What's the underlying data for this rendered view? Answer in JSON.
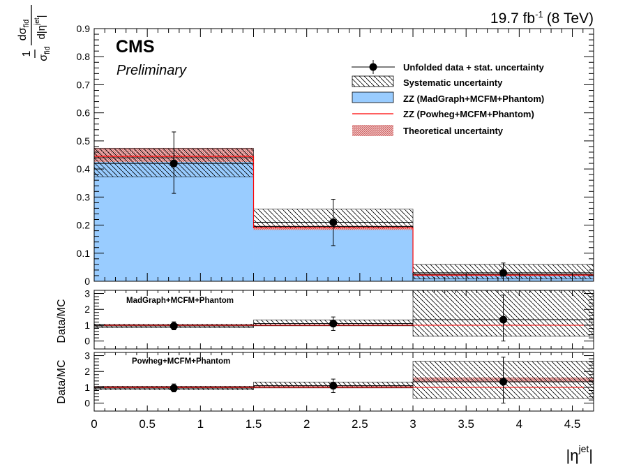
{
  "header": {
    "lumi_value": "19.7 fb",
    "lumi_exp": "-1",
    "lumi_energy": "(8 TeV)",
    "experiment": "CMS",
    "status": "Preliminary"
  },
  "main_ylabel": {
    "one": "1",
    "num_d": "d",
    "num_sigma": "σ",
    "num_sub": "fid",
    "den_sigma": "σ",
    "den_sub": "fid",
    "den_d": "d|η",
    "den_sup": "jet",
    "den_close": "|"
  },
  "ratio_ylabel": "Data/MC",
  "xlabel": {
    "base": "|η",
    "sup": "jet",
    "close": "|"
  },
  "legend": [
    {
      "key": "data",
      "label": "Unfolded data + stat. uncertainty"
    },
    {
      "key": "syst",
      "label": "Systematic uncertainty"
    },
    {
      "key": "mg",
      "label": "ZZ (MadGraph+MCFM+Phantom)"
    },
    {
      "key": "pw",
      "label": "ZZ (Powheg+MCFM+Phantom)"
    },
    {
      "key": "theo",
      "label": "Theoretical uncertainty"
    }
  ],
  "ratio_panels": [
    {
      "label": "MadGraph+MCFM+Phantom"
    },
    {
      "label": "Powheg+MCFM+Phantom"
    }
  ],
  "colors": {
    "madgraph_fill": "#99ccff",
    "powheg_line": "#ff0000",
    "theory_band": "#d98a8a",
    "data": "#000000"
  },
  "chart_data": [
    {
      "type": "bar",
      "panel": "main",
      "bin_edges": [
        0,
        1.5,
        3,
        4.7
      ],
      "xlim": [
        0,
        4.7
      ],
      "ylim": [
        0,
        0.9
      ],
      "yticks": [
        0,
        0.1,
        0.2,
        0.3,
        0.4,
        0.5,
        0.6,
        0.7,
        0.8,
        0.9
      ],
      "ytick_labels": [
        "0",
        "0.1",
        "0.2",
        "0.3",
        "0.4",
        "0.5",
        "0.6",
        "0.7",
        "0.8",
        "0.9"
      ],
      "series": [
        {
          "name": "ZZ (MadGraph+MCFM+Phantom)",
          "values": [
            0.44,
            0.195,
            0.025
          ]
        },
        {
          "name": "ZZ (Powheg+MCFM+Phantom)",
          "values": [
            0.445,
            0.19,
            0.022
          ]
        },
        {
          "name": "Theoretical uncertainty",
          "low": [
            0.425,
            0.183,
            0.019
          ],
          "high": [
            0.475,
            0.198,
            0.026
          ]
        },
        {
          "name": "Systematic uncertainty",
          "low": [
            0.372,
            0.19,
            0.008
          ],
          "high": [
            0.473,
            0.257,
            0.06
          ]
        },
        {
          "name": "Unfolded data + stat. uncertainty",
          "x": [
            0.75,
            2.25,
            3.85
          ],
          "values": [
            0.42,
            0.21,
            0.03
          ],
          "err_low": [
            0.107,
            0.083,
            0.03
          ],
          "err_high": [
            0.112,
            0.082,
            0.035
          ]
        }
      ]
    },
    {
      "type": "bar",
      "panel": "ratio_madgraph",
      "bin_edges": [
        0,
        1.5,
        3,
        4.7
      ],
      "xlim": [
        0,
        4.7
      ],
      "ylim": [
        -0.5,
        3.2
      ],
      "yticks": [
        0,
        1,
        2,
        3
      ],
      "ytick_labels": [
        "0",
        "1",
        "2",
        "3"
      ],
      "series": [
        {
          "name": "Data/MC",
          "x": [
            0.75,
            2.25,
            3.85
          ],
          "values": [
            0.95,
            1.1,
            1.35
          ],
          "err_low": [
            0.24,
            0.43,
            1.35
          ],
          "err_high": [
            0.26,
            0.42,
            1.55
          ]
        },
        {
          "name": "Systematic uncertainty",
          "low": [
            0.84,
            0.96,
            0.3
          ],
          "high": [
            1.07,
            1.33,
            3.2
          ]
        }
      ]
    },
    {
      "type": "bar",
      "panel": "ratio_powheg",
      "bin_edges": [
        0,
        1.5,
        3,
        4.7
      ],
      "xlim": [
        0,
        4.7
      ],
      "ylim": [
        -0.5,
        3.2
      ],
      "yticks": [
        0,
        1,
        2,
        3
      ],
      "ytick_labels": [
        "0",
        "1",
        "2",
        "3"
      ],
      "xticks": [
        0,
        0.5,
        1,
        1.5,
        2,
        2.5,
        3,
        3.5,
        4,
        4.5
      ],
      "xtick_labels": [
        "0",
        "0.5",
        "1",
        "1.5",
        "2",
        "2.5",
        "3",
        "3.5",
        "4",
        "4.5"
      ],
      "series": [
        {
          "name": "Data/MC",
          "x": [
            0.75,
            2.25,
            3.85
          ],
          "values": [
            0.95,
            1.1,
            1.35
          ],
          "err_low": [
            0.24,
            0.43,
            1.35
          ],
          "err_high": [
            0.26,
            0.42,
            1.55
          ]
        },
        {
          "name": "Systematic uncertainty",
          "low": [
            0.84,
            0.96,
            0.3
          ],
          "high": [
            1.07,
            1.33,
            2.65
          ]
        },
        {
          "name": "Theoretical uncertainty",
          "low": [
            0.96,
            1.04,
            1.32
          ],
          "high": [
            1.05,
            1.12,
            1.62
          ]
        }
      ]
    }
  ]
}
